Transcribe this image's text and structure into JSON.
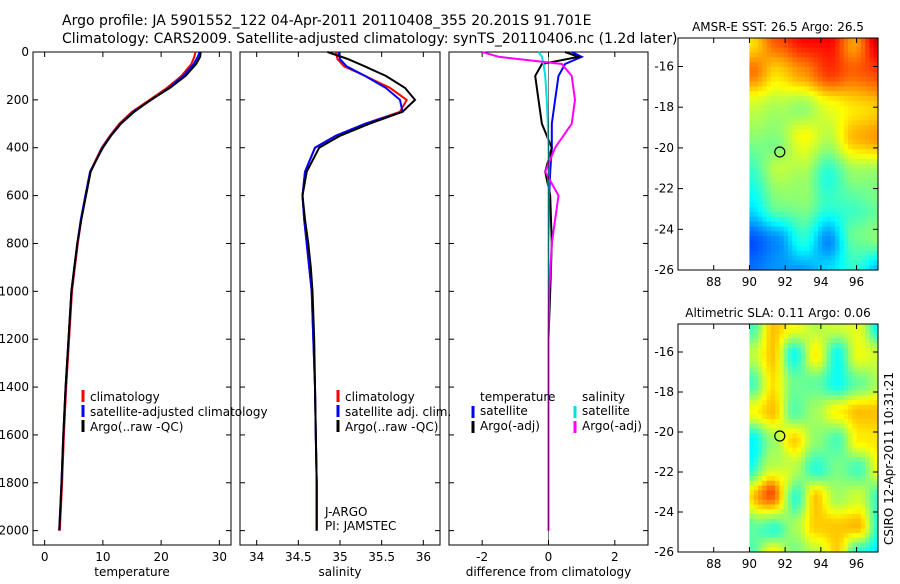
{
  "header": {
    "line1": "Argo profile: JA 5901552_122 04-Apr-2011 20110408_355 20.201S 91.701E",
    "line2": "Climatology: CARS2009. Satellite-adjusted climatology: synTS_20110406.nc (1.2d later)"
  },
  "side_label": "CSIRO 12-Apr-2011 10:31:21",
  "colors": {
    "climatology": "#ff0000",
    "satellite": "#0000ff",
    "argo": "#000000",
    "sat_salinity": "#00e0e0",
    "argo_salinity": "#ff00ff"
  },
  "chart_data": [
    {
      "type": "line",
      "name": "temperature-profile",
      "xlabel": "temperature",
      "ylabel": "",
      "xlim": [
        -2,
        32
      ],
      "ylim": [
        2060,
        0
      ],
      "xticks": [
        "0",
        "10",
        "20",
        "30"
      ],
      "yticks": [
        "0",
        "200",
        "400",
        "600",
        "800",
        "1000",
        "1200",
        "1400",
        "1600",
        "1800",
        "2000"
      ],
      "legend": [
        "climatology",
        "satellite-adjusted climatology",
        "Argo(..raw -QC)"
      ],
      "series": [
        {
          "name": "climatology",
          "color": "climatology",
          "x": [
            25.9,
            25.7,
            25.2,
            23.5,
            21.0,
            18.0,
            15.0,
            12.8,
            11.2,
            9.8,
            8.8,
            7.8,
            7.0,
            6.3,
            5.7,
            5.2,
            4.7,
            4.2,
            3.7,
            3.3,
            3.0,
            2.8,
            2.6
          ],
          "y": [
            0,
            20,
            50,
            100,
            150,
            200,
            250,
            300,
            350,
            400,
            450,
            500,
            600,
            700,
            800,
            900,
            1000,
            1200,
            1400,
            1600,
            1800,
            1900,
            2000
          ]
        },
        {
          "name": "satellite-adjusted climatology",
          "color": "satellite",
          "x": [
            26.6,
            26.3,
            25.6,
            23.8,
            21.3,
            18.3,
            15.2,
            13.0,
            11.3,
            9.9,
            8.9,
            7.8,
            7.0,
            6.2,
            5.6,
            5.1,
            4.6,
            4.1,
            3.6,
            3.2,
            2.9,
            2.7,
            2.5
          ],
          "y": [
            0,
            20,
            50,
            100,
            150,
            200,
            250,
            300,
            350,
            400,
            450,
            500,
            600,
            700,
            800,
            900,
            1000,
            1200,
            1400,
            1600,
            1800,
            1900,
            2000
          ]
        },
        {
          "name": "Argo(..raw -QC)",
          "color": "argo",
          "x": [
            26.8,
            26.7,
            26.0,
            24.2,
            21.5,
            18.2,
            15.4,
            13.1,
            11.4,
            10.0,
            8.9,
            7.9,
            7.1,
            6.3,
            5.6,
            5.1,
            4.6,
            4.1,
            3.6,
            3.2,
            2.9,
            2.7,
            2.5
          ],
          "y": [
            0,
            20,
            50,
            100,
            150,
            200,
            250,
            300,
            350,
            400,
            450,
            500,
            600,
            700,
            800,
            900,
            1000,
            1200,
            1400,
            1600,
            1800,
            1900,
            2000
          ]
        }
      ]
    },
    {
      "type": "line",
      "name": "salinity-profile",
      "xlabel": "salinity",
      "xlim": [
        33.8,
        36.2
      ],
      "ylim": [
        2060,
        0
      ],
      "xticks": [
        "34",
        "34.5",
        "35",
        "35.5",
        "36"
      ],
      "legend": [
        "climatology",
        "satellite adj. clim.",
        "Argo(..raw -QC)"
      ],
      "annotations": [
        "J-ARGO",
        "PI: JAMSTEC"
      ],
      "series": [
        {
          "name": "climatology",
          "color": "climatology",
          "x": [
            34.95,
            34.97,
            35.05,
            35.3,
            35.6,
            35.8,
            35.72,
            35.3,
            34.95,
            34.7,
            34.58,
            34.55,
            34.57,
            34.6,
            34.63,
            34.66,
            34.68,
            34.7,
            34.71,
            34.72,
            34.72
          ],
          "y": [
            0,
            30,
            60,
            100,
            150,
            200,
            250,
            300,
            350,
            400,
            500,
            600,
            700,
            800,
            900,
            1000,
            1200,
            1400,
            1600,
            1800,
            2000
          ]
        },
        {
          "name": "satellite adj. clim.",
          "color": "satellite",
          "x": [
            34.98,
            35.0,
            35.08,
            35.3,
            35.55,
            35.72,
            35.75,
            35.3,
            34.95,
            34.7,
            34.58,
            34.55,
            34.57,
            34.6,
            34.63,
            34.66,
            34.68,
            34.7,
            34.71,
            34.72,
            34.72
          ],
          "y": [
            0,
            30,
            60,
            100,
            150,
            200,
            250,
            300,
            350,
            400,
            500,
            600,
            700,
            800,
            900,
            1000,
            1200,
            1400,
            1600,
            1800,
            2000
          ]
        },
        {
          "name": "Argo(..raw -QC)",
          "color": "argo",
          "x": [
            34.85,
            35.1,
            35.3,
            35.55,
            35.78,
            35.9,
            35.75,
            35.35,
            35.0,
            34.75,
            34.6,
            34.55,
            34.58,
            34.62,
            34.65,
            34.67,
            34.69,
            34.7,
            34.71,
            34.72,
            34.72
          ],
          "y": [
            0,
            30,
            60,
            100,
            150,
            200,
            250,
            300,
            350,
            400,
            500,
            600,
            700,
            800,
            900,
            1000,
            1200,
            1400,
            1600,
            1800,
            2000
          ]
        }
      ]
    },
    {
      "type": "line",
      "name": "difference-profile",
      "xlabel": "difference from climatology",
      "xlim": [
        -3,
        3
      ],
      "ylim": [
        2060,
        0
      ],
      "xticks": [
        "-2",
        "0",
        "2"
      ],
      "legend": [
        "temperature",
        "satellite",
        "Argo(-adj)",
        "salinity",
        "satellite",
        "Argo(-adj)"
      ],
      "series": [
        {
          "name": "temperature satellite",
          "color": "satellite",
          "x": [
            0.7,
            1.0,
            0.5,
            0.3,
            0.2,
            0.1,
            0.1,
            0.05,
            0.02,
            0.0,
            0.0,
            0.0,
            0.0,
            0.0,
            0.0
          ],
          "y": [
            0,
            20,
            50,
            100,
            200,
            300,
            400,
            500,
            600,
            800,
            1000,
            1200,
            1500,
            1800,
            2000
          ]
        },
        {
          "name": "temperature Argo(-adj)",
          "color": "argo",
          "x": [
            0.5,
            0.9,
            -0.2,
            -0.4,
            -0.3,
            -0.2,
            0.1,
            -0.1,
            0.05,
            0.1,
            0.05,
            0.0,
            0.0,
            0.0,
            0.0
          ],
          "y": [
            0,
            20,
            50,
            100,
            200,
            300,
            400,
            500,
            600,
            800,
            1000,
            1200,
            1500,
            1800,
            2000
          ]
        },
        {
          "name": "salinity satellite",
          "color": "sat_salinity",
          "x": [
            -0.3,
            -0.2,
            -0.15,
            -0.1,
            -0.05,
            -0.02,
            0.0,
            0.0,
            0.0,
            0.0,
            0.0,
            0.0,
            0.0,
            0.0,
            0.0
          ],
          "y": [
            0,
            20,
            50,
            100,
            200,
            300,
            400,
            500,
            600,
            800,
            1000,
            1200,
            1500,
            1800,
            2000
          ]
        },
        {
          "name": "salinity Argo(-adj)",
          "color": "argo_salinity",
          "x": [
            -2.0,
            -1.5,
            0.4,
            0.7,
            0.8,
            0.7,
            0.2,
            -0.1,
            0.3,
            0.1,
            0.02,
            0.0,
            0.0,
            0.0,
            0.0
          ],
          "y": [
            0,
            20,
            50,
            100,
            200,
            300,
            400,
            500,
            600,
            800,
            1000,
            1200,
            1500,
            1800,
            2000
          ]
        }
      ]
    },
    {
      "type": "heatmap",
      "name": "sst-map",
      "title": "AMSR-E SST: 26.5 Argo: 26.5",
      "xlim": [
        86,
        97.2
      ],
      "ylim": [
        -26,
        -14.6
      ],
      "xticks": [
        "88",
        "90",
        "92",
        "94",
        "96"
      ],
      "yticks": [
        "-16",
        "-18",
        "-20",
        "-22",
        "-24",
        "-26"
      ],
      "data_xrange": [
        90,
        97.2
      ],
      "marker": {
        "lon": 91.7,
        "lat": -20.2
      }
    },
    {
      "type": "heatmap",
      "name": "sla-map",
      "title": "Altimetric SLA: 0.11 Argo: 0.06",
      "xlim": [
        86,
        97.2
      ],
      "ylim": [
        -26,
        -14.6
      ],
      "xticks": [
        "88",
        "90",
        "92",
        "94",
        "96"
      ],
      "yticks": [
        "-16",
        "-18",
        "-20",
        "-22",
        "-24",
        "-26"
      ],
      "data_xrange": [
        90,
        97.2
      ],
      "marker": {
        "lon": 91.7,
        "lat": -20.2
      }
    }
  ]
}
